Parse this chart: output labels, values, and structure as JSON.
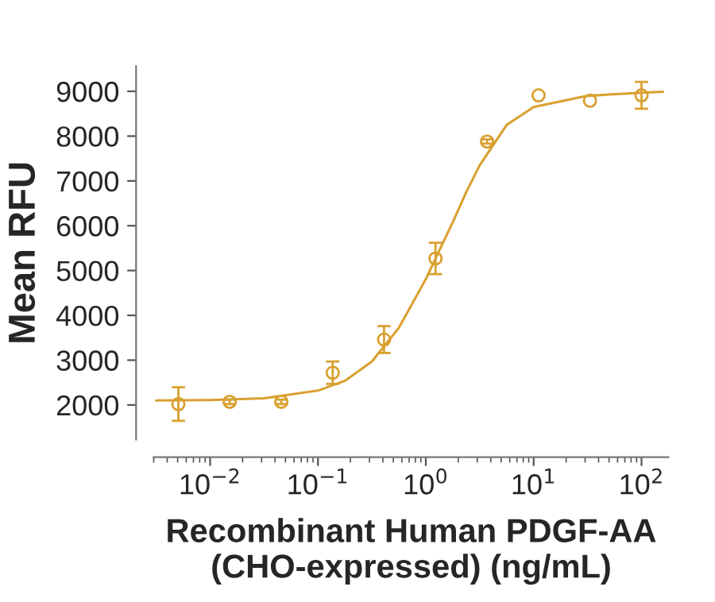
{
  "chart_data": {
    "type": "scatter",
    "xlabel": "Recombinant Human PDGF-AA\n(CHO-expressed) (ng/mL)",
    "ylabel": "Mean RFU",
    "log": "x",
    "marker": "circle",
    "grid": false,
    "legend": false,
    "xlim": [
      0.003,
      178
    ],
    "xticks": [
      {
        "value": 0.01,
        "label": "10$^{−2}$"
      },
      {
        "value": 0.1,
        "label": "10$^{−1}$"
      },
      {
        "value": 1,
        "label": "10$^{0}$"
      },
      {
        "value": 10,
        "label": "10$^{1}$"
      },
      {
        "value": 100,
        "label": "10$^{2}$"
      }
    ],
    "ylim": [
      1230,
      9560
    ],
    "yticks": [
      2000,
      3000,
      4000,
      5000,
      6000,
      7000,
      8000,
      9000
    ],
    "series": [
      {
        "color": "#d9a030",
        "x": [
          0.00508,
          0.0152,
          0.0457,
          0.137,
          0.41,
          1.23,
          3.7,
          11.1,
          33.3,
          100
        ],
        "values": [
          2020,
          2070,
          2070,
          2720,
          3460,
          5270,
          7880,
          8910,
          8790,
          8910
        ],
        "errors": [
          375,
          50,
          50,
          250,
          300,
          350,
          50,
          null,
          null,
          300
        ]
      },
      {
        "type": "line",
        "color": "#d9a030",
        "marker": "none",
        "x": [
          0.00316,
          0.01,
          0.0316,
          0.1,
          0.178,
          0.316,
          0.562,
          1,
          1.33,
          1.78,
          2.37,
          3.16,
          5.62,
          10,
          31.6,
          100,
          158
        ],
        "values": [
          2100,
          2110,
          2150,
          2320,
          2540,
          2970,
          3720,
          4810,
          5440,
          6080,
          6750,
          7350,
          8250,
          8650,
          8900,
          8970,
          8990
        ]
      }
    ]
  }
}
